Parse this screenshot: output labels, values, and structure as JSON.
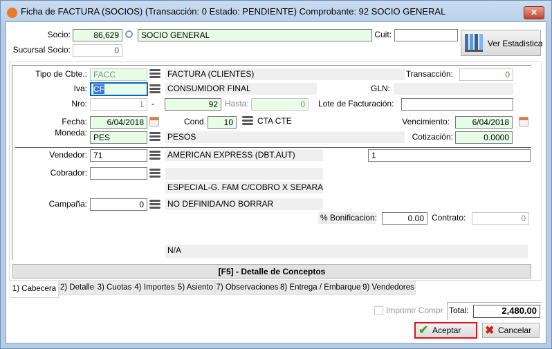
{
  "window": {
    "title": "Ficha de FACTURA  (SOCIOS) (Transacción: 0 Estado: PENDIENTE) Comprobante: 92  SOCIO GENERAL",
    "close": "✕"
  },
  "header": {
    "socio_label": "Socio:",
    "socio_code": "86,629",
    "socio_name": "SOCIO GENERAL",
    "cuit_label": "Cuit:",
    "cuit": "",
    "sucursal_label": "Sucursal Socio:",
    "sucursal": "0",
    "stats_button": "Ver Estadistica"
  },
  "form": {
    "tipo_label": "Tipo de Cbte.:",
    "tipo": "FACC",
    "tipo_desc": "FACTURA  (CLIENTES)",
    "transaccion_label": "Transacción:",
    "transaccion": "0",
    "iva_label": "Iva:",
    "iva": "CF",
    "iva_desc": "CONSUMIDOR FINAL",
    "gln_label": "GLN:",
    "gln": "",
    "nro_label": "Nro:",
    "nro_pv": "1",
    "nro_sep": "-",
    "nro": "92",
    "hasta_label": "Hasta:",
    "hasta": "0",
    "lote_label": "Lote de Facturación:",
    "lote": "",
    "fecha_label": "Fecha:",
    "fecha": "6/04/2018",
    "cond_label": "Cond.",
    "cond": "10",
    "cond_desc": "CTA CTE",
    "venc_label": "Vencimiento:",
    "venc": "6/04/2018",
    "moneda_label": "Moneda:",
    "moneda": "PES",
    "moneda_desc": "PESOS",
    "cotiz_label": "Cotización:",
    "cotiz": "0.0000",
    "vendedor_label": "Vendedor:",
    "vendedor": "71",
    "vendedor_desc": "AMERICAN EXPRESS    (DBT.AUT)",
    "vendedor_extra": "1",
    "cobrador_label": "Cobrador:",
    "cobrador": "",
    "cobrador_desc": "",
    "especial": "ESPECIAL-G. FAM C/COBRO X SEPARADO DI",
    "campana_label": "Campaña:",
    "campana": "0",
    "campana_desc": "NO DEFINIDA/NO BORRAR",
    "bonif_label": "% Bonificacion:",
    "bonif": "0.00",
    "contrato_label": "Contrato:",
    "contrato": "0",
    "na": "N/A"
  },
  "detail_bar": "[F5] - Detalle de Conceptos",
  "tabs": [
    {
      "label": "1) Cabecera"
    },
    {
      "label": "2) Detalle"
    },
    {
      "label": "3) Cuotas"
    },
    {
      "label": "4) Importes"
    },
    {
      "label": "5) Asiento"
    },
    {
      "label": "7) Observaciones"
    },
    {
      "label": "8) Entrega / Embarque"
    },
    {
      "label": "9) Vendedores"
    }
  ],
  "footer": {
    "print_label": "Imprimir Comprob.",
    "total_label": "Total:",
    "total": "2,480.00",
    "accept": "Aceptar",
    "cancel": "Cancelar"
  },
  "colors": {
    "field_green": "#e8fde8",
    "focus": "#0066cc",
    "accept_border": "#e0101a"
  }
}
